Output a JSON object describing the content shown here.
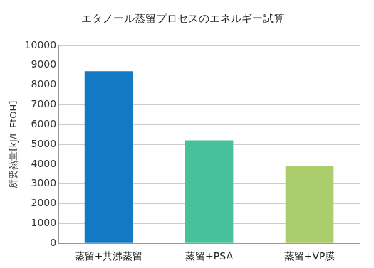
{
  "chart_data": {
    "type": "bar",
    "title": "エタノール蒸留プロセスのエネルギー試算",
    "y_label": "所要熱量[kJ/L-EtOH]",
    "categories": [
      "蒸留+共沸蒸留",
      "蒸留+PSA",
      "蒸留+VP膜"
    ],
    "values": [
      8700,
      5200,
      3900
    ],
    "colors": [
      "#1479c4",
      "#47c19c",
      "#abcd6c"
    ],
    "ylim": [
      0,
      10000
    ],
    "yticks": [
      0,
      1000,
      2000,
      3000,
      4000,
      5000,
      6000,
      7000,
      8000,
      9000,
      10000
    ],
    "grid": true
  }
}
